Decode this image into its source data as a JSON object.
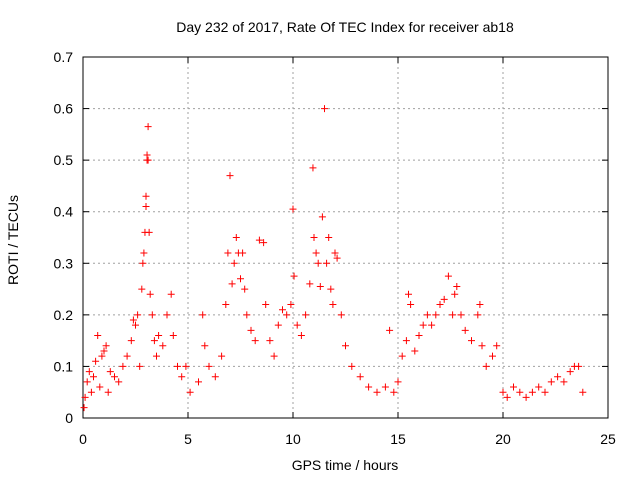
{
  "chart_data": {
    "type": "scatter",
    "title": "Day 232 of 2017, Rate Of TEC Index for receiver ab18",
    "xlabel": "GPS time / hours",
    "ylabel": "ROTI / TECUs",
    "xlim": [
      0,
      25
    ],
    "ylim": [
      0,
      0.7
    ],
    "xticks": [
      0,
      5,
      10,
      15,
      20,
      25
    ],
    "yticks": [
      0,
      0.1,
      0.2,
      0.3,
      0.4,
      0.5,
      0.6,
      0.7
    ],
    "xtick_labels": [
      "0",
      "5",
      "10",
      "15",
      "20",
      "25"
    ],
    "ytick_labels": [
      "0",
      "0.1",
      "0.2",
      "0.3",
      "0.4",
      "0.5",
      "0.6",
      "0.7"
    ],
    "grid": true,
    "marker": "+",
    "marker_color": "#ff0000",
    "series": [
      {
        "points": [
          [
            0.05,
            0.02
          ],
          [
            0.1,
            0.04
          ],
          [
            0.2,
            0.07
          ],
          [
            0.3,
            0.09
          ],
          [
            0.4,
            0.05
          ],
          [
            0.5,
            0.08
          ],
          [
            0.6,
            0.11
          ],
          [
            0.7,
            0.16
          ],
          [
            0.8,
            0.06
          ],
          [
            0.9,
            0.12
          ],
          [
            1.0,
            0.13
          ],
          [
            1.1,
            0.14
          ],
          [
            1.2,
            0.05
          ],
          [
            1.3,
            0.09
          ],
          [
            1.5,
            0.08
          ],
          [
            1.7,
            0.07
          ],
          [
            1.9,
            0.1
          ],
          [
            2.1,
            0.12
          ],
          [
            2.3,
            0.15
          ],
          [
            2.4,
            0.19
          ],
          [
            2.5,
            0.18
          ],
          [
            2.6,
            0.2
          ],
          [
            2.7,
            0.1
          ],
          [
            2.8,
            0.25
          ],
          [
            2.85,
            0.3
          ],
          [
            2.9,
            0.32
          ],
          [
            2.95,
            0.36
          ],
          [
            3.0,
            0.41
          ],
          [
            3.0,
            0.43
          ],
          [
            3.05,
            0.5
          ],
          [
            3.05,
            0.51
          ],
          [
            3.1,
            0.565
          ],
          [
            3.1,
            0.5
          ],
          [
            3.15,
            0.36
          ],
          [
            3.2,
            0.24
          ],
          [
            3.3,
            0.2
          ],
          [
            3.4,
            0.15
          ],
          [
            3.5,
            0.12
          ],
          [
            3.6,
            0.16
          ],
          [
            3.8,
            0.14
          ],
          [
            4.0,
            0.2
          ],
          [
            4.2,
            0.24
          ],
          [
            4.3,
            0.16
          ],
          [
            4.5,
            0.1
          ],
          [
            4.7,
            0.08
          ],
          [
            4.9,
            0.1
          ],
          [
            5.1,
            0.05
          ],
          [
            5.5,
            0.07
          ],
          [
            5.7,
            0.2
          ],
          [
            5.8,
            0.14
          ],
          [
            6.0,
            0.1
          ],
          [
            6.3,
            0.08
          ],
          [
            6.6,
            0.12
          ],
          [
            6.8,
            0.22
          ],
          [
            6.9,
            0.32
          ],
          [
            7.0,
            0.47
          ],
          [
            7.1,
            0.26
          ],
          [
            7.2,
            0.3
          ],
          [
            7.3,
            0.35
          ],
          [
            7.4,
            0.32
          ],
          [
            7.5,
            0.27
          ],
          [
            7.6,
            0.32
          ],
          [
            7.7,
            0.25
          ],
          [
            7.8,
            0.2
          ],
          [
            8.0,
            0.17
          ],
          [
            8.2,
            0.15
          ],
          [
            8.4,
            0.345
          ],
          [
            8.6,
            0.34
          ],
          [
            8.7,
            0.22
          ],
          [
            8.9,
            0.15
          ],
          [
            9.1,
            0.12
          ],
          [
            9.3,
            0.18
          ],
          [
            9.5,
            0.21
          ],
          [
            9.7,
            0.2
          ],
          [
            9.9,
            0.22
          ],
          [
            10.0,
            0.405
          ],
          [
            10.05,
            0.275
          ],
          [
            10.2,
            0.18
          ],
          [
            10.4,
            0.16
          ],
          [
            10.6,
            0.2
          ],
          [
            10.8,
            0.26
          ],
          [
            10.95,
            0.485
          ],
          [
            11.0,
            0.35
          ],
          [
            11.1,
            0.32
          ],
          [
            11.2,
            0.3
          ],
          [
            11.3,
            0.255
          ],
          [
            11.4,
            0.39
          ],
          [
            11.5,
            0.6
          ],
          [
            11.6,
            0.3
          ],
          [
            11.7,
            0.35
          ],
          [
            11.8,
            0.25
          ],
          [
            11.9,
            0.22
          ],
          [
            12.0,
            0.32
          ],
          [
            12.1,
            0.31
          ],
          [
            12.3,
            0.2
          ],
          [
            12.5,
            0.14
          ],
          [
            12.8,
            0.1
          ],
          [
            13.2,
            0.08
          ],
          [
            13.6,
            0.06
          ],
          [
            14.0,
            0.05
          ],
          [
            14.4,
            0.06
          ],
          [
            14.6,
            0.17
          ],
          [
            14.8,
            0.05
          ],
          [
            15.0,
            0.07
          ],
          [
            15.2,
            0.12
          ],
          [
            15.4,
            0.15
          ],
          [
            15.5,
            0.24
          ],
          [
            15.6,
            0.22
          ],
          [
            15.8,
            0.13
          ],
          [
            16.0,
            0.16
          ],
          [
            16.2,
            0.18
          ],
          [
            16.4,
            0.2
          ],
          [
            16.6,
            0.18
          ],
          [
            16.8,
            0.2
          ],
          [
            17.0,
            0.22
          ],
          [
            17.2,
            0.23
          ],
          [
            17.4,
            0.275
          ],
          [
            17.6,
            0.2
          ],
          [
            17.7,
            0.24
          ],
          [
            17.8,
            0.255
          ],
          [
            18.0,
            0.2
          ],
          [
            18.2,
            0.17
          ],
          [
            18.5,
            0.15
          ],
          [
            18.8,
            0.2
          ],
          [
            18.9,
            0.22
          ],
          [
            19.0,
            0.14
          ],
          [
            19.2,
            0.1
          ],
          [
            19.5,
            0.12
          ],
          [
            19.7,
            0.14
          ],
          [
            20.0,
            0.05
          ],
          [
            20.2,
            0.04
          ],
          [
            20.5,
            0.06
          ],
          [
            20.8,
            0.05
          ],
          [
            21.1,
            0.04
          ],
          [
            21.4,
            0.05
          ],
          [
            21.7,
            0.06
          ],
          [
            22.0,
            0.05
          ],
          [
            22.3,
            0.07
          ],
          [
            22.6,
            0.08
          ],
          [
            22.9,
            0.07
          ],
          [
            23.2,
            0.09
          ],
          [
            23.4,
            0.1
          ],
          [
            23.6,
            0.1
          ],
          [
            23.8,
            0.05
          ]
        ]
      }
    ]
  }
}
